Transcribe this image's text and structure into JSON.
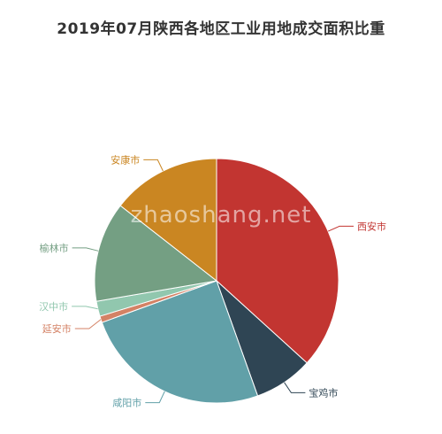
{
  "watermark": "zhaoshang.net",
  "chart_data": {
    "type": "pie",
    "title": "2019年07月陕西各地区工业用地成交面积比重",
    "slices": [
      {
        "label": "西安市",
        "value": 38.6,
        "color": "#c23531"
      },
      {
        "label": "宝鸡市",
        "value": 8.2,
        "color": "#2f4554"
      },
      {
        "label": "咸阳市",
        "value": 26.2,
        "color": "#61a0a8"
      },
      {
        "label": "延安市",
        "value": 0.9,
        "color": "#d48265"
      },
      {
        "label": "汉中市",
        "value": 2.1,
        "color": "#91c7ae"
      },
      {
        "label": "榆林市",
        "value": 13.9,
        "color": "#749f83"
      },
      {
        "label": "安康市",
        "value": 15.2,
        "color": "#ca8622"
      }
    ],
    "start_angle": "12 o'clock",
    "direction": "clockwise",
    "legend": "none"
  }
}
